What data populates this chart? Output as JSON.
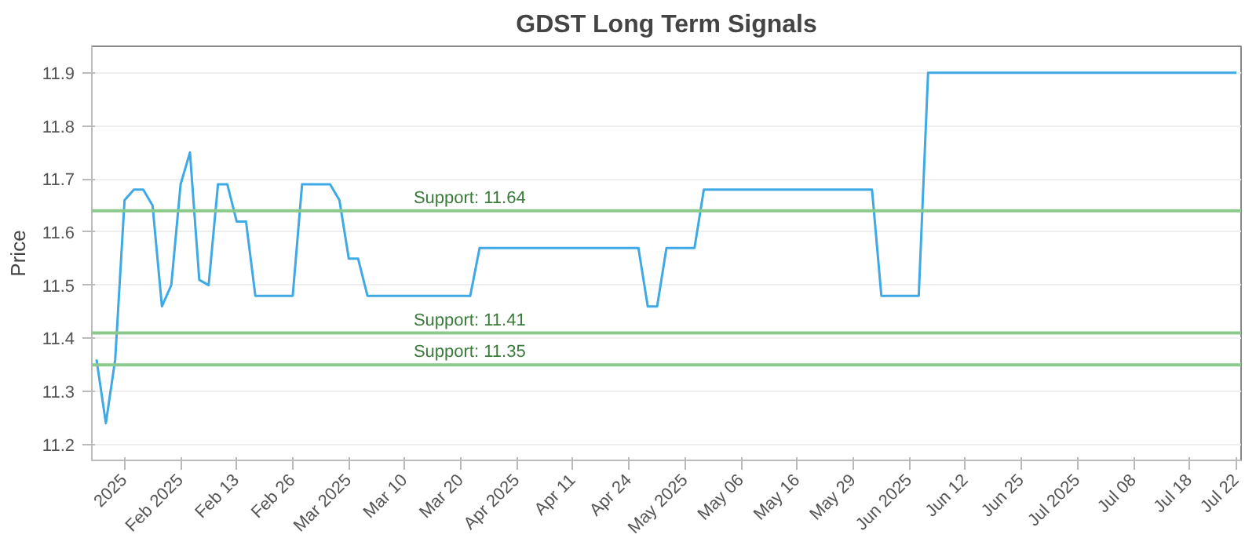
{
  "chart_data": {
    "type": "line",
    "title": "GDST Long Term Signals",
    "ylabel": "Price",
    "categories": [
      null,
      null,
      null,
      "2025",
      null,
      null,
      null,
      null,
      null,
      "Feb 2025",
      null,
      null,
      null,
      null,
      null,
      "Feb 13",
      null,
      null,
      null,
      null,
      null,
      "Feb 26",
      null,
      null,
      null,
      null,
      null,
      "Mar 2025",
      null,
      null,
      null,
      null,
      null,
      "Mar 10",
      null,
      null,
      null,
      null,
      null,
      "Mar 20",
      null,
      null,
      null,
      null,
      null,
      "Apr 2025",
      null,
      null,
      null,
      null,
      null,
      "Apr 11",
      null,
      null,
      null,
      null,
      null,
      "Apr 24",
      null,
      null,
      null,
      null,
      null,
      "May 2025",
      null,
      null,
      null,
      null,
      null,
      "May 06",
      null,
      null,
      null,
      null,
      null,
      "May 16",
      null,
      null,
      null,
      null,
      null,
      "May 29",
      null,
      null,
      null,
      null,
      null,
      "Jun 2025",
      null,
      null,
      null,
      null,
      null,
      "Jun 12",
      null,
      null,
      null,
      null,
      null,
      "Jun 25",
      null,
      null,
      null,
      null,
      null,
      "Jul 2025",
      null,
      null,
      null,
      null,
      null,
      "Jul 08",
      null,
      null,
      null,
      null,
      null,
      "Jul 18",
      null,
      null,
      null,
      null,
      "Jul 22"
    ],
    "series": [
      {
        "color": "#3fa9e6",
        "values": [
          11.36,
          11.24,
          11.36,
          11.66,
          11.68,
          11.68,
          11.65,
          11.46,
          11.5,
          11.69,
          11.75,
          11.51,
          11.5,
          11.69,
          11.69,
          11.62,
          11.62,
          11.48,
          11.48,
          11.48,
          11.48,
          11.48,
          11.69,
          11.69,
          11.69,
          11.69,
          11.66,
          11.55,
          11.55,
          11.48,
          11.48,
          11.48,
          11.48,
          11.48,
          11.48,
          11.48,
          11.48,
          11.48,
          11.48,
          11.48,
          11.48,
          11.57,
          11.57,
          11.57,
          11.57,
          11.57,
          11.57,
          11.57,
          11.57,
          11.57,
          11.57,
          11.57,
          11.57,
          11.57,
          11.57,
          11.57,
          11.57,
          11.57,
          11.57,
          11.46,
          11.46,
          11.57,
          11.57,
          11.57,
          11.57,
          11.68,
          11.68,
          11.68,
          11.68,
          11.68,
          11.68,
          11.68,
          11.68,
          11.68,
          11.68,
          11.68,
          11.68,
          11.68,
          11.68,
          11.68,
          11.68,
          11.68,
          11.68,
          11.68,
          11.48,
          11.48,
          11.48,
          11.48,
          11.48,
          11.9,
          11.9,
          11.9,
          11.9,
          11.9,
          11.9,
          11.9,
          11.9,
          11.9,
          11.9,
          11.9,
          11.9,
          11.9,
          11.9,
          11.9,
          11.9,
          11.9,
          11.9,
          11.9,
          11.9,
          11.9,
          11.9,
          11.9,
          11.9,
          11.9,
          11.9,
          11.9,
          11.9,
          11.9,
          11.9,
          11.9,
          11.9,
          11.9,
          11.9
        ]
      }
    ],
    "ylim": [
      11.17,
      11.95
    ],
    "yticks": [
      11.2,
      11.3,
      11.4,
      11.5,
      11.6,
      11.7,
      11.8,
      11.9
    ],
    "ref_lines": [
      {
        "axis": "y",
        "value": 11.64,
        "label": "Support: 11.64",
        "color": "#8cc98c"
      },
      {
        "axis": "y",
        "value": 11.41,
        "label": "Support: 11.41",
        "color": "#8cc98c"
      },
      {
        "axis": "y",
        "value": 11.35,
        "label": "Support: 11.35",
        "color": "#8cc98c"
      }
    ],
    "grid": "y",
    "marker": "none",
    "line_style": "solid"
  }
}
